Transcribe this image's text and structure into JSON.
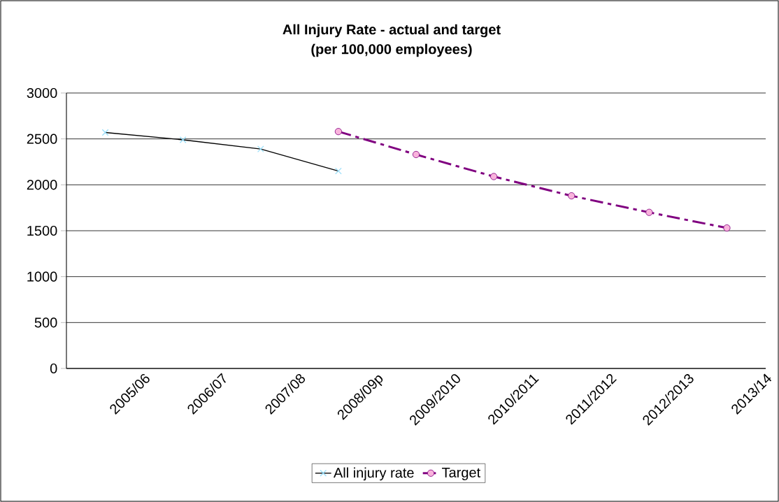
{
  "chart_data": {
    "type": "line",
    "title": "All Injury Rate - actual and target",
    "subtitle": "(per 100,000 employees)",
    "categories": [
      "2005/06",
      "2006/07",
      "2007/08",
      "2008/09p",
      "2009/2010",
      "2010/2011",
      "2011/2012",
      "2012/2013",
      "2013/14"
    ],
    "series": [
      {
        "name": "All injury rate",
        "color": "#000000",
        "marker": "cross",
        "line_style": "solid",
        "values": [
          2570,
          2490,
          2390,
          2150,
          null,
          null,
          null,
          null,
          null
        ]
      },
      {
        "name": "Target",
        "color": "#800080",
        "marker": "circle",
        "line_style": "dashed",
        "values": [
          null,
          null,
          null,
          2580,
          2330,
          2090,
          1880,
          1700,
          1530
        ]
      }
    ],
    "ylim": [
      0,
      3000
    ],
    "yticks": [
      0,
      500,
      1000,
      1500,
      2000,
      2500,
      3000
    ],
    "grid": "y",
    "legend": "bottom"
  }
}
